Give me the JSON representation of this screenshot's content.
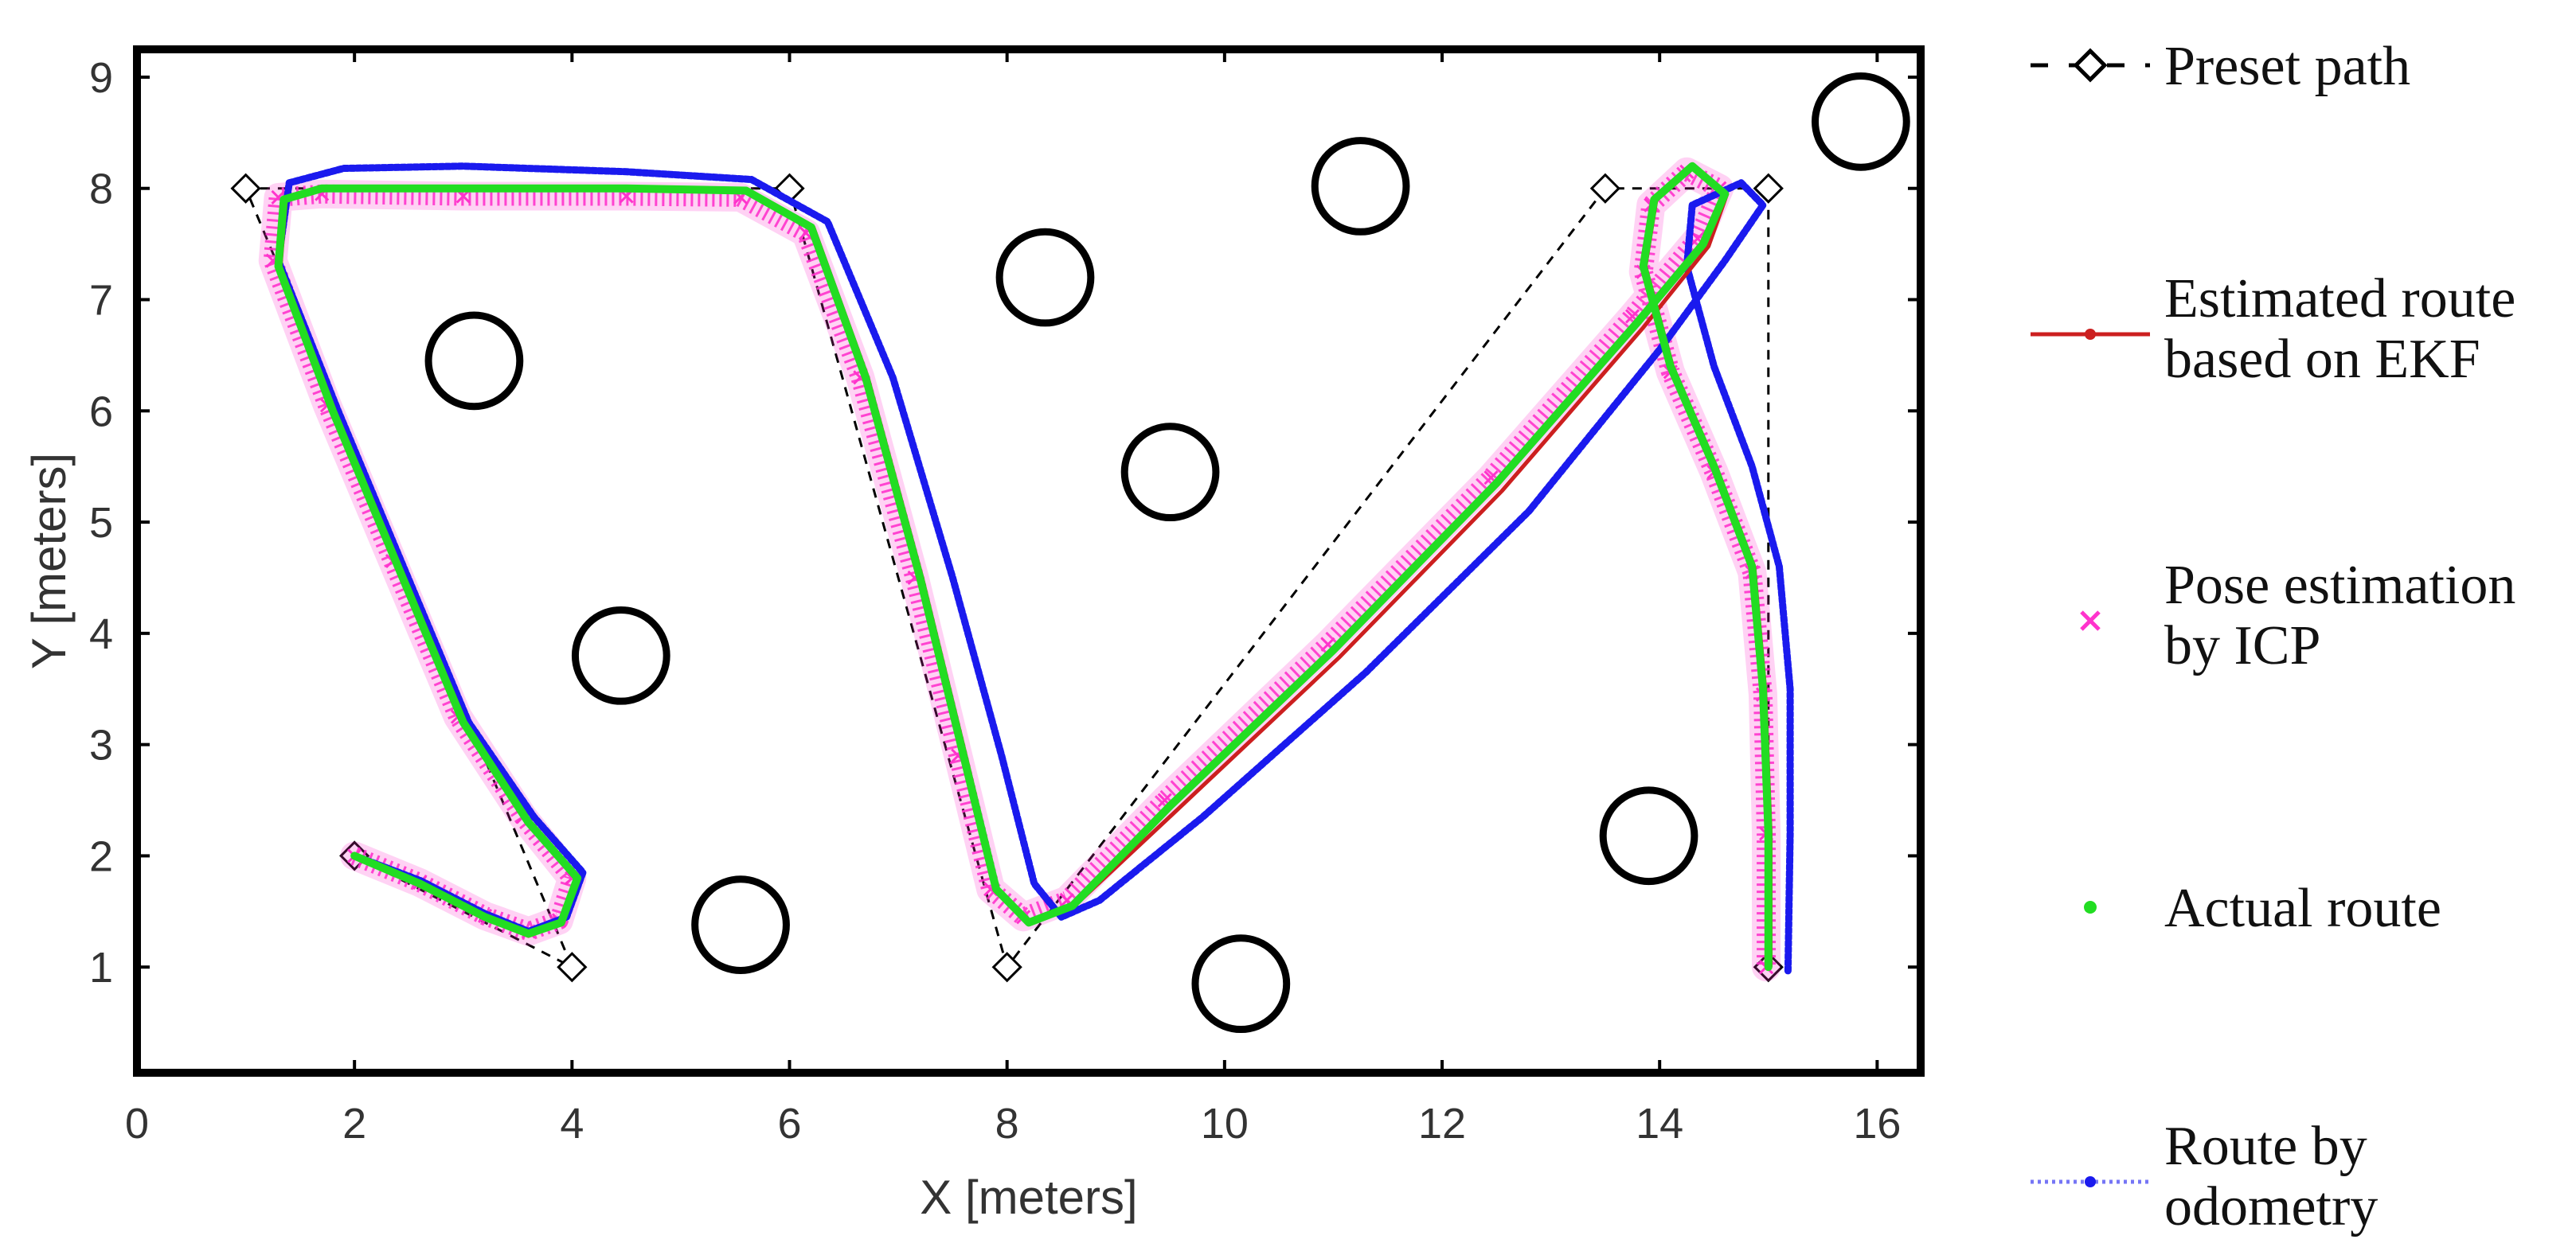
{
  "chart_data": {
    "type": "line",
    "xlabel": "X [meters]",
    "ylabel": "Y [meters]",
    "xlim": [
      0,
      16.4
    ],
    "ylim": [
      0.05,
      9.25
    ],
    "x_ticks": [
      0,
      2,
      4,
      6,
      8,
      10,
      12,
      14,
      16
    ],
    "y_ticks": [
      1,
      2,
      3,
      4,
      5,
      6,
      7,
      8,
      9
    ],
    "grid": false,
    "legend_position": "right",
    "legend": [
      {
        "key": "preset",
        "lines": [
          "Preset path"
        ]
      },
      {
        "key": "ekf",
        "lines": [
          "Estimated route",
          "based on EKF"
        ]
      },
      {
        "key": "icp",
        "lines": [
          "Pose estimation",
          "by ICP"
        ]
      },
      {
        "key": "actual",
        "lines": [
          "Actual route"
        ]
      },
      {
        "key": "odom",
        "lines": [
          "Route by",
          "odometry"
        ]
      }
    ],
    "colors": {
      "preset": "#000000",
      "ekf": "#cc1f1f",
      "icp": "#ff33cc",
      "actual": "#22dd22",
      "odom": "#1a1aee"
    },
    "obstacles": [
      {
        "x": 3.1,
        "y": 6.45
      },
      {
        "x": 4.45,
        "y": 3.8
      },
      {
        "x": 5.55,
        "y": 1.38
      },
      {
        "x": 8.35,
        "y": 7.2
      },
      {
        "x": 9.5,
        "y": 5.45
      },
      {
        "x": 10.15,
        "y": 0.85
      },
      {
        "x": 11.25,
        "y": 8.02
      },
      {
        "x": 13.9,
        "y": 2.18
      },
      {
        "x": 15.85,
        "y": 8.6
      }
    ],
    "obstacle_radius": 0.42,
    "preset_path": {
      "name": "Preset path",
      "points": [
        [
          2,
          2
        ],
        [
          4,
          1
        ],
        [
          1,
          8
        ],
        [
          6,
          8
        ],
        [
          8,
          1
        ],
        [
          13.5,
          8
        ],
        [
          15,
          8
        ],
        [
          15,
          1
        ]
      ]
    },
    "series": [
      {
        "name": "Actual route",
        "key": "actual",
        "points": [
          [
            2,
            2
          ],
          [
            2.6,
            1.75
          ],
          [
            3.2,
            1.45
          ],
          [
            3.6,
            1.3
          ],
          [
            3.9,
            1.4
          ],
          [
            4.05,
            1.8
          ],
          [
            3.6,
            2.3
          ],
          [
            3.0,
            3.2
          ],
          [
            2.4,
            4.6
          ],
          [
            1.8,
            6.0
          ],
          [
            1.3,
            7.3
          ],
          [
            1.35,
            7.9
          ],
          [
            1.7,
            8.0
          ],
          [
            3,
            8.0
          ],
          [
            4.5,
            8.0
          ],
          [
            5.6,
            7.98
          ],
          [
            6.2,
            7.65
          ],
          [
            6.7,
            6.3
          ],
          [
            7.2,
            4.5
          ],
          [
            7.6,
            2.9
          ],
          [
            7.9,
            1.7
          ],
          [
            8.2,
            1.4
          ],
          [
            8.6,
            1.55
          ],
          [
            9.5,
            2.45
          ],
          [
            11,
            3.85
          ],
          [
            12.5,
            5.35
          ],
          [
            13.8,
            6.8
          ],
          [
            14.4,
            7.5
          ],
          [
            14.6,
            7.95
          ],
          [
            14.3,
            8.2
          ],
          [
            13.95,
            7.9
          ],
          [
            13.85,
            7.3
          ],
          [
            14.1,
            6.4
          ],
          [
            14.5,
            5.5
          ],
          [
            14.85,
            4.6
          ],
          [
            14.95,
            3.5
          ],
          [
            15.0,
            2.2
          ],
          [
            15.0,
            1.0
          ]
        ]
      },
      {
        "name": "Estimated route based on EKF",
        "key": "ekf",
        "points": [
          [
            2,
            2
          ],
          [
            2.6,
            1.74
          ],
          [
            3.2,
            1.44
          ],
          [
            3.6,
            1.28
          ],
          [
            3.92,
            1.4
          ],
          [
            4.05,
            1.8
          ],
          [
            3.62,
            2.3
          ],
          [
            3.02,
            3.2
          ],
          [
            2.42,
            4.6
          ],
          [
            1.82,
            6.0
          ],
          [
            1.32,
            7.3
          ],
          [
            1.37,
            7.9
          ],
          [
            1.72,
            8.0
          ],
          [
            3,
            8.0
          ],
          [
            4.5,
            8.0
          ],
          [
            5.62,
            7.98
          ],
          [
            6.22,
            7.65
          ],
          [
            6.72,
            6.3
          ],
          [
            7.22,
            4.5
          ],
          [
            7.62,
            2.9
          ],
          [
            7.92,
            1.68
          ],
          [
            8.22,
            1.4
          ],
          [
            8.62,
            1.55
          ],
          [
            9.55,
            2.4
          ],
          [
            11.05,
            3.78
          ],
          [
            12.55,
            5.28
          ],
          [
            13.85,
            6.75
          ],
          [
            14.45,
            7.48
          ],
          [
            14.62,
            7.95
          ],
          [
            14.32,
            8.2
          ],
          [
            13.97,
            7.9
          ],
          [
            13.87,
            7.3
          ],
          [
            14.12,
            6.4
          ],
          [
            14.52,
            5.5
          ],
          [
            14.87,
            4.6
          ],
          [
            14.97,
            3.5
          ],
          [
            15.02,
            2.2
          ],
          [
            15.02,
            1.0
          ]
        ]
      },
      {
        "name": "Pose estimation by ICP",
        "key": "icp",
        "points": [
          [
            2,
            2
          ],
          [
            2.6,
            1.76
          ],
          [
            3.2,
            1.46
          ],
          [
            3.6,
            1.32
          ],
          [
            3.88,
            1.42
          ],
          [
            4.0,
            1.8
          ],
          [
            3.55,
            2.35
          ],
          [
            2.95,
            3.25
          ],
          [
            2.35,
            4.65
          ],
          [
            1.75,
            6.05
          ],
          [
            1.25,
            7.35
          ],
          [
            1.3,
            7.92
          ],
          [
            1.7,
            7.95
          ],
          [
            3,
            7.93
          ],
          [
            4.5,
            7.93
          ],
          [
            5.55,
            7.92
          ],
          [
            6.15,
            7.6
          ],
          [
            6.65,
            6.3
          ],
          [
            7.15,
            4.5
          ],
          [
            7.55,
            2.9
          ],
          [
            7.85,
            1.7
          ],
          [
            8.15,
            1.45
          ],
          [
            8.55,
            1.6
          ],
          [
            9.45,
            2.5
          ],
          [
            10.95,
            3.9
          ],
          [
            12.45,
            5.4
          ],
          [
            13.75,
            6.85
          ],
          [
            14.35,
            7.55
          ],
          [
            14.55,
            8.0
          ],
          [
            14.25,
            8.15
          ],
          [
            13.92,
            7.85
          ],
          [
            13.85,
            7.25
          ],
          [
            14.1,
            6.35
          ],
          [
            14.5,
            5.45
          ],
          [
            14.85,
            4.55
          ],
          [
            14.95,
            3.45
          ],
          [
            14.98,
            2.2
          ],
          [
            14.98,
            1.0
          ]
        ]
      },
      {
        "name": "Route by odometry",
        "key": "odom",
        "points": [
          [
            2,
            2
          ],
          [
            2.6,
            1.78
          ],
          [
            3.2,
            1.48
          ],
          [
            3.6,
            1.32
          ],
          [
            3.95,
            1.45
          ],
          [
            4.1,
            1.85
          ],
          [
            3.65,
            2.35
          ],
          [
            3.05,
            3.2
          ],
          [
            2.45,
            4.6
          ],
          [
            1.85,
            6.0
          ],
          [
            1.3,
            7.35
          ],
          [
            1.4,
            8.05
          ],
          [
            1.9,
            8.18
          ],
          [
            3,
            8.2
          ],
          [
            4.5,
            8.15
          ],
          [
            5.65,
            8.08
          ],
          [
            6.35,
            7.7
          ],
          [
            6.95,
            6.3
          ],
          [
            7.5,
            4.5
          ],
          [
            7.95,
            2.9
          ],
          [
            8.25,
            1.75
          ],
          [
            8.5,
            1.45
          ],
          [
            8.85,
            1.6
          ],
          [
            9.8,
            2.35
          ],
          [
            11.3,
            3.65
          ],
          [
            12.8,
            5.1
          ],
          [
            14.0,
            6.55
          ],
          [
            14.6,
            7.35
          ],
          [
            14.95,
            7.85
          ],
          [
            14.75,
            8.05
          ],
          [
            14.3,
            7.85
          ],
          [
            14.25,
            7.3
          ],
          [
            14.5,
            6.4
          ],
          [
            14.85,
            5.5
          ],
          [
            15.1,
            4.6
          ],
          [
            15.2,
            3.5
          ],
          [
            15.2,
            2.2
          ],
          [
            15.18,
            0.95
          ]
        ]
      }
    ]
  }
}
